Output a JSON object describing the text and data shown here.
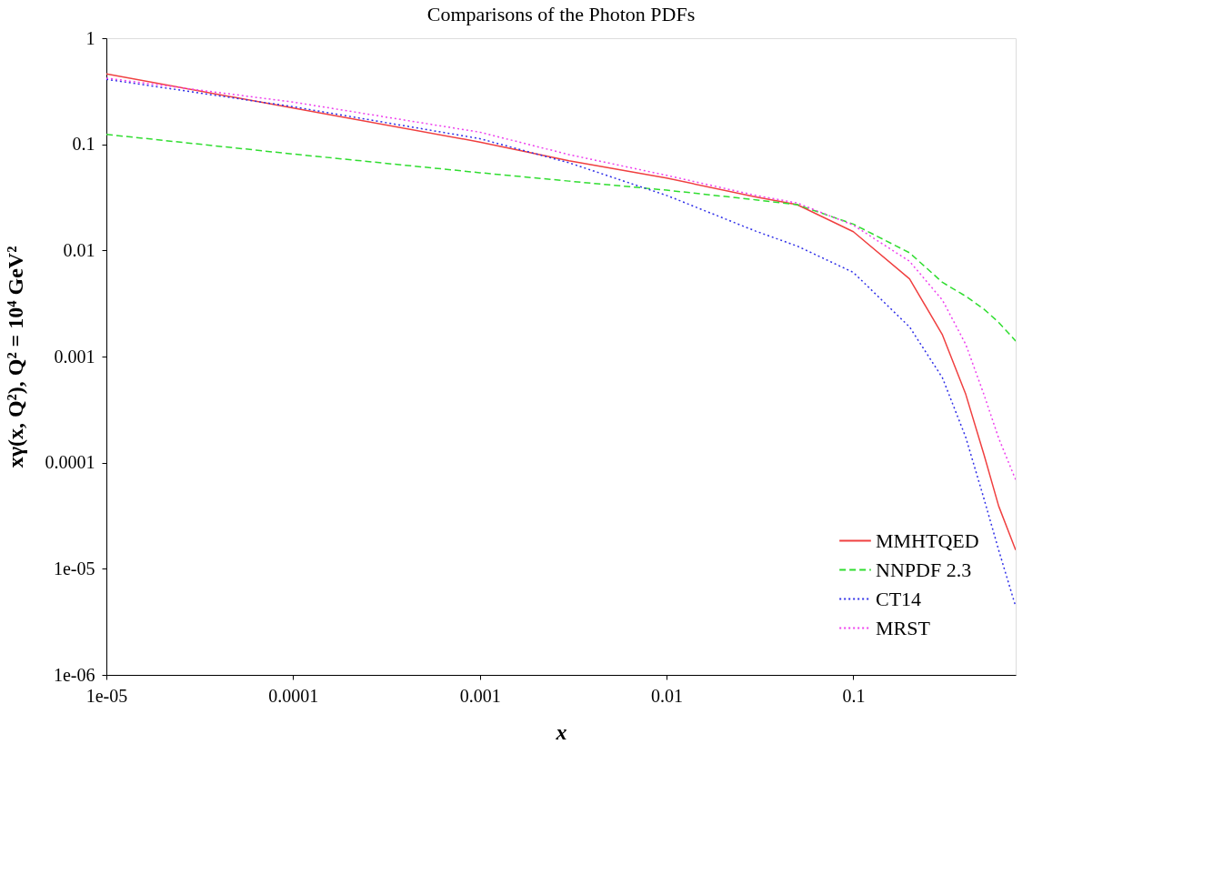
{
  "chart_data": {
    "type": "line",
    "title": "Comparisons of the Photon PDFs",
    "xlabel": "x",
    "ylabel": "xγ(x, Q²), Q² = 10⁴ GeV²",
    "log": "xy",
    "grid": false,
    "legend": "bottom right",
    "marker": "none",
    "xlim": [
      1e-05,
      0.74
    ],
    "ylim": [
      1e-06,
      1
    ],
    "xticks": [
      {
        "value": 1e-05,
        "label": "1e-05"
      },
      0.0001,
      0.001,
      0.01,
      0.1
    ],
    "yticks": [
      {
        "value": 1e-06,
        "label": "1e-06"
      },
      {
        "value": 1e-05,
        "label": "1e-05"
      },
      0.0001,
      0.001,
      0.01,
      0.1,
      1
    ],
    "x": [
      1e-05,
      0.0001,
      0.001,
      0.003,
      0.01,
      0.03,
      0.05,
      0.1,
      0.2,
      0.3,
      0.4,
      0.5,
      0.6,
      0.74
    ],
    "series": [
      {
        "name": "MMHTQED",
        "color": "#f04040",
        "line_style": "solid",
        "values": [
          0.46,
          0.22,
          0.105,
          0.07,
          0.048,
          0.032,
          0.027,
          0.015,
          0.0054,
          0.0016,
          0.00044,
          0.00012,
          3.9e-05,
          1.5e-05
        ]
      },
      {
        "name": "NNPDF 2.3",
        "color": "#30dd30",
        "line_style": "dashed",
        "values": [
          0.124,
          0.081,
          0.054,
          0.045,
          0.037,
          0.03,
          0.027,
          0.0177,
          0.0095,
          0.005,
          0.0037,
          0.0028,
          0.0021,
          0.0014
        ]
      },
      {
        "name": "CT14",
        "color": "#3030e8",
        "line_style": "dotted",
        "values": [
          0.41,
          0.226,
          0.113,
          0.067,
          0.033,
          0.0152,
          0.011,
          0.0062,
          0.0019,
          0.00063,
          0.000173,
          4.6e-05,
          1.5e-05,
          4.4e-06
        ]
      },
      {
        "name": "MRST",
        "color": "#ee40ee",
        "line_style": "dotted",
        "values": [
          0.42,
          0.25,
          0.13,
          0.08,
          0.051,
          0.033,
          0.028,
          0.0173,
          0.0079,
          0.0034,
          0.0013,
          0.00044,
          0.00017,
          6.9e-05
        ]
      }
    ]
  }
}
